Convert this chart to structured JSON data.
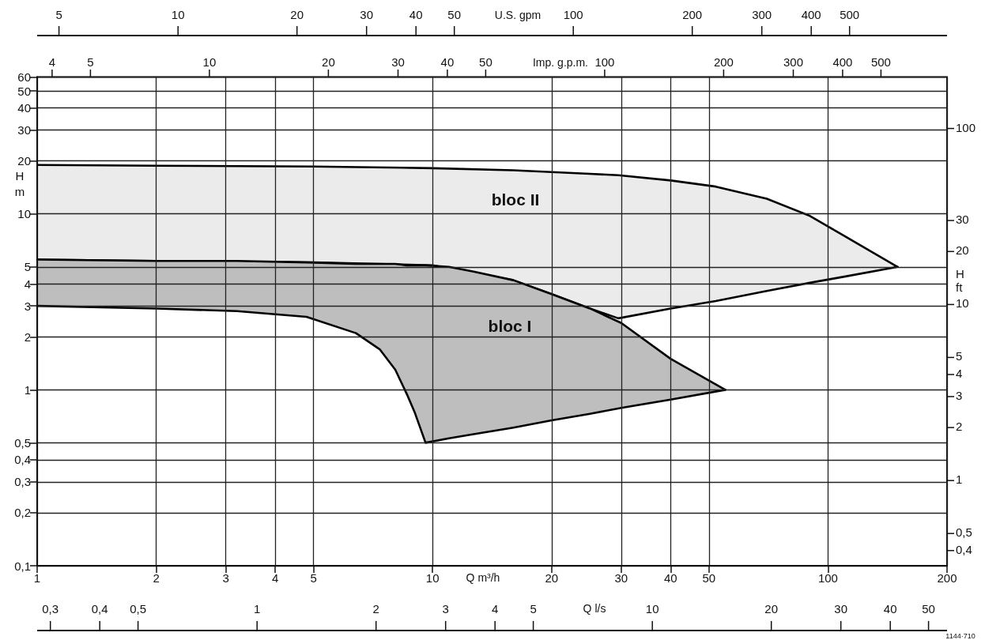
{
  "chart_data": [
    {
      "type": "other",
      "xlabel": "U.S. gpm",
      "annotations": [
        "5",
        "10",
        "20",
        "30",
        "40",
        "50",
        "100",
        "200",
        "300",
        "400",
        "500"
      ]
    },
    {
      "type": "other",
      "xlabel": "Imp. g.p.m.",
      "annotations": [
        "4",
        "5",
        "10",
        "20",
        "30",
        "40",
        "50",
        "100",
        "200",
        "300",
        "400",
        "500"
      ]
    },
    {
      "type": "area",
      "xlabel": "Q m³/h",
      "ylabel": "H m",
      "log": "xy",
      "grid": true,
      "xlim": [
        1,
        200
      ],
      "xticks": [
        1,
        2,
        3,
        4,
        5,
        10,
        20,
        30,
        40,
        50,
        100,
        200
      ],
      "ylim": [
        0.1,
        60
      ],
      "yticks": [
        {
          "value": 0.1,
          "label": "0,1"
        },
        {
          "value": 0.2,
          "label": "0,2"
        },
        {
          "value": 0.3,
          "label": "0,3"
        },
        {
          "value": 0.4,
          "label": "0,4"
        },
        {
          "value": 0.5,
          "label": "0,5"
        },
        1,
        2,
        3,
        4,
        5,
        10,
        20,
        30,
        40,
        50,
        60
      ],
      "series": [
        {
          "color": "#ebebeb",
          "x": [
            1,
            2,
            5,
            10,
            16,
            20,
            25,
            29.5,
            40,
            52,
            70,
            89.5,
            110,
            150
          ],
          "values": [
            19,
            18.8,
            18.6,
            18.2,
            17.7,
            17.3,
            16.9,
            16.6,
            15.5,
            14.3,
            12.2,
            9.8,
            7.5,
            5
          ]
        },
        {
          "type": "line",
          "color": "#000000",
          "x": [
            1,
            2,
            5,
            10,
            16,
            20,
            25,
            29.5,
            40,
            52,
            70,
            89.5,
            110,
            150
          ],
          "values": [
            5.5,
            5.4,
            5.3,
            5.1,
            4.2,
            3.5,
            2.9,
            2.55,
            2.9,
            3.2,
            3.65,
            4.05,
            4.4,
            5
          ]
        },
        {
          "color": "#bebebe",
          "x": [
            1,
            2,
            3.2,
            4.8,
            6.4,
            7.35,
            8.05,
            8.6,
            9,
            9.6,
            11,
            12.7,
            16,
            20,
            25,
            30,
            40,
            55
          ],
          "values": [
            5.5,
            5.4,
            5.4,
            5.3,
            5.2,
            5.2,
            5.2,
            5.1,
            5.1,
            5.1,
            5.0,
            4.7,
            4.2,
            3.5,
            2.9,
            2.4,
            1.5,
            1.0
          ]
        },
        {
          "type": "line",
          "color": "#000000",
          "x": [
            1,
            2,
            3.2,
            4.8,
            6.4,
            7.35,
            8.05,
            8.6,
            9,
            9.6,
            11,
            12.7,
            16,
            20,
            25,
            30,
            40,
            55
          ],
          "values": [
            3.0,
            2.9,
            2.8,
            2.6,
            2.1,
            1.7,
            1.3,
            0.95,
            0.75,
            0.5,
            0.53,
            0.56,
            0.61,
            0.67,
            0.73,
            0.79,
            0.88,
            1.0
          ]
        }
      ],
      "annotations": [
        "bloc II",
        "bloc I"
      ]
    },
    {
      "type": "other",
      "ylabel": "H ft",
      "annotations": [
        "0,4",
        "0,5",
        "1",
        "2",
        "3",
        "4",
        "5",
        "10",
        "20",
        "30",
        "100"
      ]
    },
    {
      "type": "other",
      "xlabel": "Q l/s",
      "annotations": [
        "0,3",
        "0,4",
        "0,5",
        "1",
        "2",
        "3",
        "4",
        "5",
        "10",
        "20",
        "30",
        "40",
        "50",
        "1144·710"
      ]
    }
  ]
}
